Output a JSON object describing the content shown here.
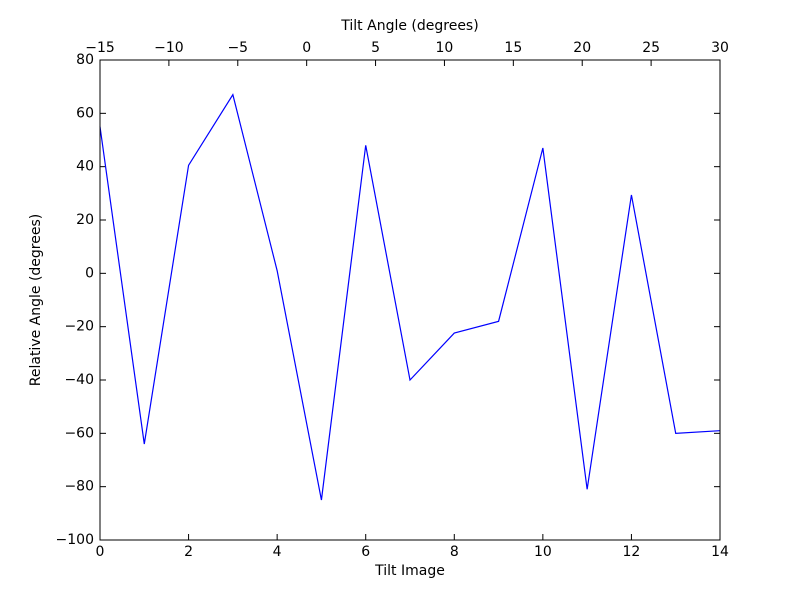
{
  "chart_data": {
    "type": "line",
    "xlabel": "Tilt Image",
    "ylabel": "Relative Angle (degrees)",
    "x2label": "Tilt Angle (degrees)",
    "x": [
      0,
      1,
      2,
      3,
      4,
      5,
      6,
      7,
      8,
      9,
      10,
      11,
      12,
      13,
      14
    ],
    "series": [
      {
        "color": "#0000ff",
        "values": [
          55,
          -64,
          40.5,
          67,
          1,
          -85,
          48,
          -40,
          -22.4,
          -18,
          47,
          -81,
          29.4,
          -60,
          -59
        ]
      }
    ],
    "xlim": [
      0,
      14
    ],
    "xticks": [
      0,
      2,
      4,
      6,
      8,
      10,
      12,
      14
    ],
    "ylim": [
      -100,
      80
    ],
    "yticks": [
      {
        "value": -100,
        "label": "−100"
      },
      {
        "value": -80,
        "label": "−80"
      },
      {
        "value": -60,
        "label": "−60"
      },
      {
        "value": -40,
        "label": "−40"
      },
      {
        "value": -20,
        "label": "−20"
      },
      0,
      20,
      40,
      60,
      80
    ],
    "x2lim": [
      -15,
      30
    ],
    "x2ticks": [
      {
        "value": -15,
        "label": "−15"
      },
      {
        "value": -10,
        "label": "−10"
      },
      {
        "value": -5,
        "label": "−5"
      },
      0,
      5,
      10,
      15,
      20,
      25,
      30
    ]
  }
}
